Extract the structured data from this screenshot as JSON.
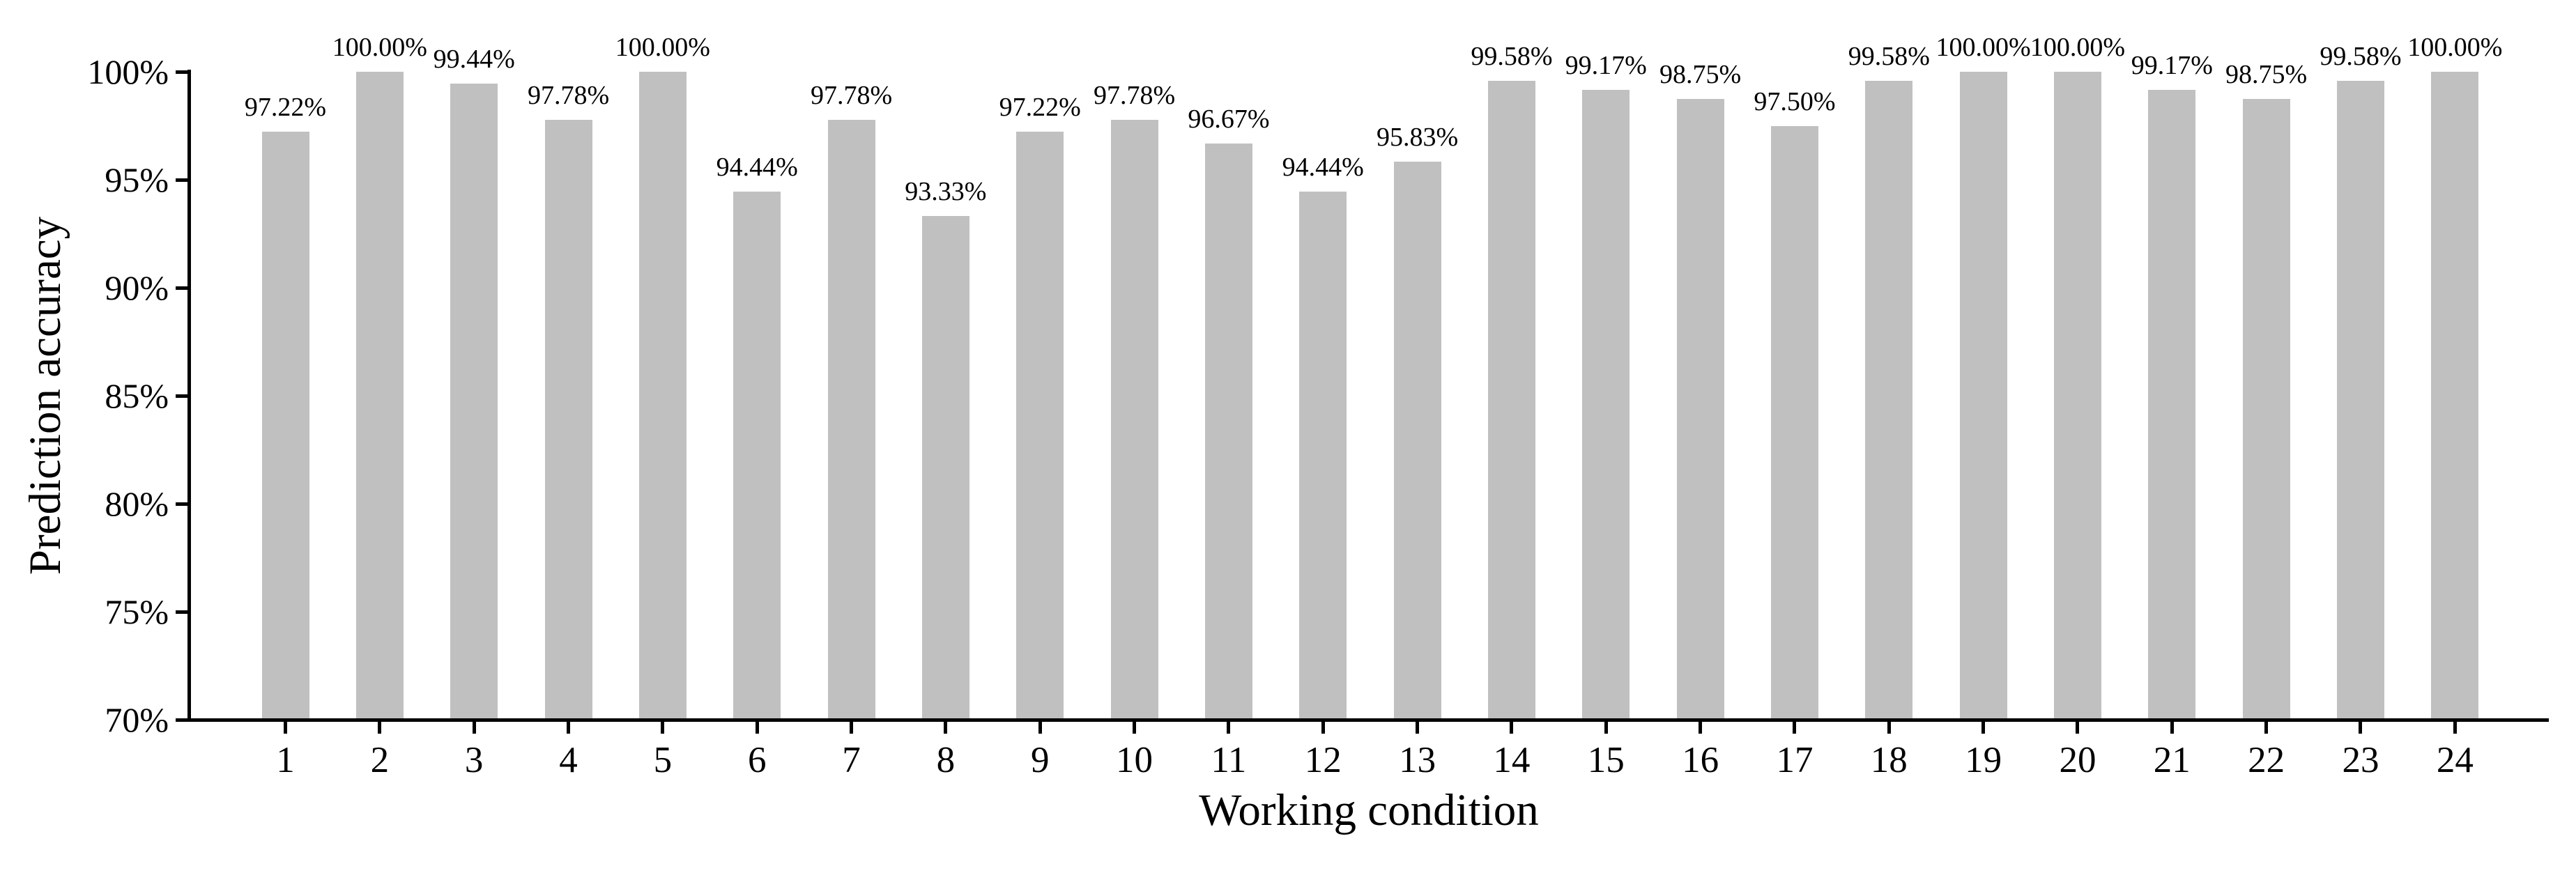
{
  "chart_data": {
    "type": "bar",
    "title": "",
    "xlabel": "Working condition",
    "ylabel": "Prediction accuracy",
    "categories": [
      "1",
      "2",
      "3",
      "4",
      "5",
      "6",
      "7",
      "8",
      "9",
      "10",
      "11",
      "12",
      "13",
      "14",
      "15",
      "16",
      "17",
      "18",
      "19",
      "20",
      "21",
      "22",
      "23",
      "24"
    ],
    "values": [
      97.22,
      100.0,
      99.44,
      97.78,
      100.0,
      94.44,
      97.78,
      93.33,
      97.22,
      97.78,
      96.67,
      94.44,
      95.83,
      99.58,
      99.17,
      98.75,
      97.5,
      99.58,
      100.0,
      100.0,
      99.17,
      98.75,
      99.58,
      100.0
    ],
    "value_labels": [
      "97.22%",
      "100.00%",
      "99.44%",
      "97.78%",
      "100.00%",
      "94.44%",
      "97.78%",
      "93.33%",
      "97.22%",
      "97.78%",
      "96.67%",
      "94.44%",
      "95.83%",
      "99.58%",
      "99.17%",
      "98.75%",
      "97.50%",
      "99.58%",
      "100.00%",
      "100.00%",
      "99.17%",
      "98.75%",
      "99.58%",
      "100.00%"
    ],
    "ylim": [
      70,
      100
    ],
    "ytick_values": [
      70,
      75,
      80,
      85,
      90,
      95,
      100
    ],
    "ytick_labels": [
      "70%",
      "75%",
      "80%",
      "85%",
      "90%",
      "95%",
      "100%"
    ],
    "grid": false,
    "legend": "none",
    "bar_color": "#c0c0c0",
    "axis_color": "#000000",
    "label_color": "#000000"
  }
}
